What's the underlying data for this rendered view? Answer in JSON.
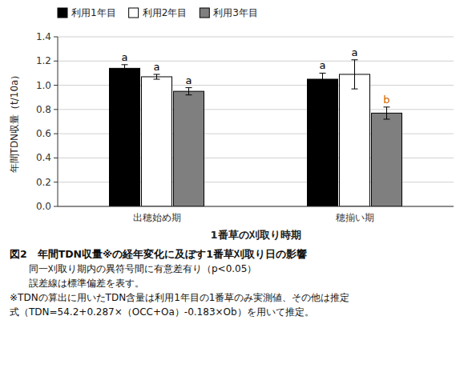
{
  "chart_data": {
    "type": "bar",
    "xlabel": "1番草の刈取り時期",
    "ylabel": "年間TDN収量（t/10a）",
    "categories": [
      "出穂始め期",
      "穂揃い期"
    ],
    "series": [
      {
        "name": "利用1年目",
        "color": "#000000",
        "values": [
          1.14,
          1.05
        ],
        "errors": [
          0.03,
          0.05
        ],
        "labels": [
          "a",
          "a"
        ],
        "label_colors": [
          "#000000",
          "#000000"
        ]
      },
      {
        "name": "利用2年目",
        "color": "#ffffff",
        "values": [
          1.07,
          1.09
        ],
        "errors": [
          0.02,
          0.12
        ],
        "labels": [
          "a",
          "a"
        ],
        "label_colors": [
          "#000000",
          "#000000"
        ]
      },
      {
        "name": "利用3年目",
        "color": "#7f7f7f",
        "values": [
          0.95,
          0.77
        ],
        "errors": [
          0.03,
          0.05
        ],
        "labels": [
          "a",
          "b"
        ],
        "label_colors": [
          "#000000",
          "#cc6600"
        ]
      }
    ],
    "ylim": [
      0.0,
      1.4
    ],
    "yticks": [
      {
        "value": 0.0,
        "label": "0.0"
      },
      0.2,
      0.4,
      0.6,
      0.8,
      {
        "value": 1.0,
        "label": "1.0"
      },
      1.2,
      1.4
    ],
    "grid": true,
    "legend": "upper left",
    "caption": [
      "図2　年間TDN収量※の経年変化に及ぼす1番草刈取り日の影響",
      "　　同一刈取り期内の異符号間に有意差有り（p<0.05）",
      "　　誤差線は標準偏差を表す。",
      "※TDNの算出に用いたTDN含量は利用1年目の1番草のみ実測値、その他は推定",
      "式（TDN=54.2+0.287×（OCC+Oa）-0.183×Ob）を用いて推定。"
    ]
  }
}
